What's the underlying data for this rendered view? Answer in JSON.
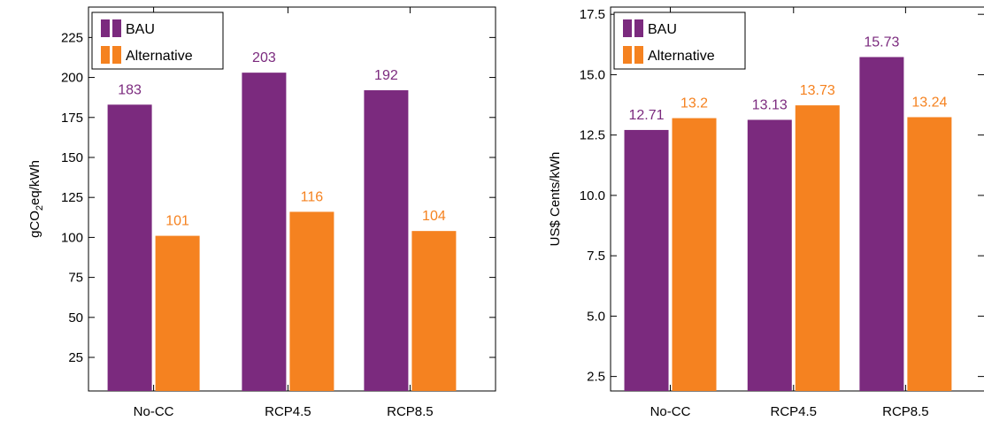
{
  "chart_data": [
    {
      "type": "bar",
      "ylabel": {
        "prefix": "gCO",
        "subscript": "2",
        "suffix": "eq/kWh"
      },
      "categories": [
        "No-CC",
        "RCP4.5",
        "RCP8.5"
      ],
      "series": [
        {
          "name": "BAU",
          "values": [
            183,
            203,
            192
          ],
          "labels": [
            "183",
            "203",
            "192"
          ]
        },
        {
          "name": "Alternative",
          "values": [
            101,
            116,
            104
          ],
          "labels": [
            "101",
            "116",
            "104"
          ]
        }
      ],
      "ylim": [
        4,
        244
      ],
      "yticks": [
        25,
        50,
        75,
        100,
        125,
        150,
        175,
        200,
        225
      ],
      "ytick_labels": [
        "25",
        "50",
        "75",
        "100",
        "125",
        "150",
        "175",
        "200",
        "225"
      ],
      "legend": "top-left",
      "grid": false
    },
    {
      "type": "bar",
      "ylabel": {
        "prefix": "US$ Cents/kWh",
        "subscript": "",
        "suffix": ""
      },
      "categories": [
        "No-CC",
        "RCP4.5",
        "RCP8.5"
      ],
      "series": [
        {
          "name": "BAU",
          "values": [
            12.71,
            13.13,
            15.73
          ],
          "labels": [
            "12.71",
            "13.13",
            "15.73"
          ]
        },
        {
          "name": "Alternative",
          "values": [
            13.2,
            13.73,
            13.24
          ],
          "labels": [
            "13.2",
            "13.73",
            "13.24"
          ]
        }
      ],
      "ylim": [
        1.9,
        17.8
      ],
      "yticks": [
        2.5,
        5.0,
        7.5,
        10.0,
        12.5,
        15.0,
        17.5
      ],
      "ytick_labels": [
        "2.5",
        "5.0",
        "7.5",
        "10.0",
        "12.5",
        "15.0",
        "17.5"
      ],
      "legend": "top-left",
      "grid": false
    }
  ],
  "colors": {
    "BAU": "#7b2a7e",
    "Alternative": "#f58220"
  }
}
